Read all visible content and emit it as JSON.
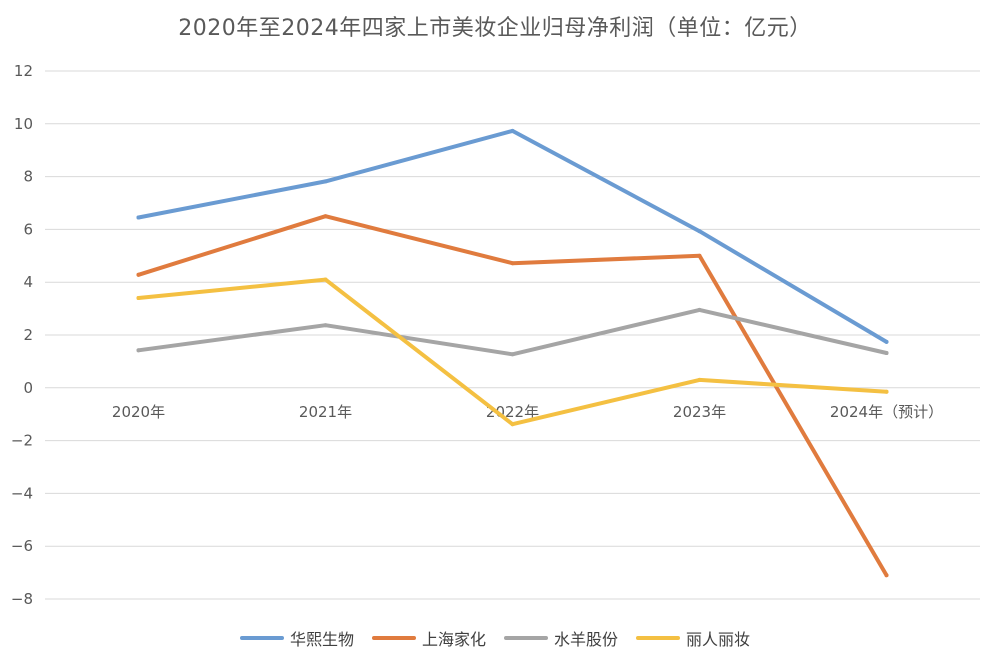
{
  "chart_data": {
    "type": "line",
    "title": "2020年至2024年四家上市美妆企业归母净利润（单位：亿元）",
    "categories": [
      "2020年",
      "2021年",
      "2022年",
      "2023年",
      "2024年（预计）"
    ],
    "xlabel": "",
    "ylabel": "",
    "ylim": [
      -8,
      12
    ],
    "yticks": [
      12,
      10,
      8,
      6,
      4,
      2,
      0,
      -2,
      -4,
      -6,
      -8
    ],
    "grid": true,
    "legend_position": "bottom",
    "series": [
      {
        "name": "华熙生物",
        "color": "#6a9bd2",
        "values": [
          6.45,
          7.82,
          9.73,
          5.93,
          1.74
        ]
      },
      {
        "name": "上海家化",
        "color": "#e07b3e",
        "values": [
          4.28,
          6.5,
          4.72,
          5.0,
          -7.1
        ]
      },
      {
        "name": "水羊股份",
        "color": "#a5a5a5",
        "values": [
          1.42,
          2.37,
          1.27,
          2.95,
          1.32
        ]
      },
      {
        "name": "丽人丽妆",
        "color": "#f4c042",
        "values": [
          3.4,
          4.1,
          -1.38,
          0.3,
          -0.15
        ]
      }
    ]
  }
}
